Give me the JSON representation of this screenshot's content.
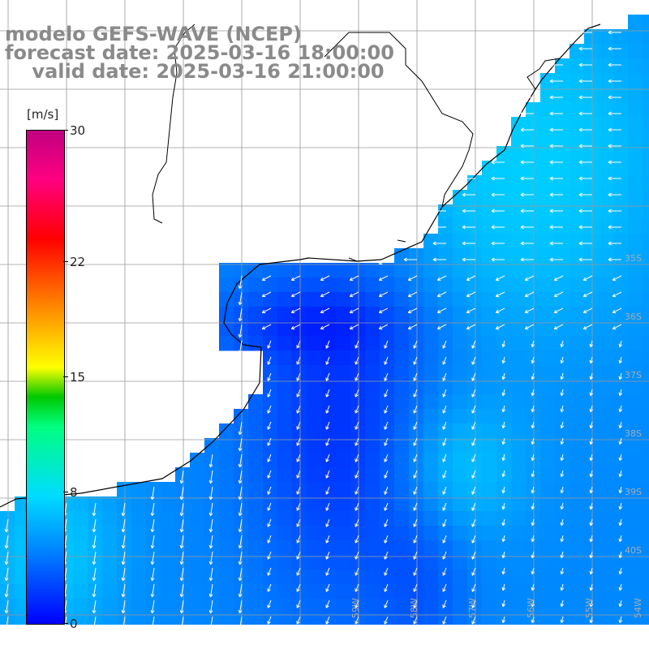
{
  "title": {
    "line1": "modelo GEFS-WAVE (NCEP)",
    "line2": "forecast date: 2025-03-16 18:00:00",
    "line3": "    valid date: 2025-03-16 21:00:00"
  },
  "colorbar": {
    "unit": "[m/s]",
    "ticks": [
      {
        "label": "30",
        "value": 30
      },
      {
        "label": "22",
        "value": 22
      },
      {
        "label": "15",
        "value": 15
      },
      {
        "label": "8",
        "value": 8
      },
      {
        "label": "0",
        "value": 0
      }
    ],
    "range": [
      0,
      30
    ]
  },
  "grid": {
    "lat_labels": [
      "35S",
      "36S",
      "37S",
      "38S",
      "39S",
      "40S"
    ],
    "lon_labels": [
      "59W",
      "58W",
      "57W",
      "56W",
      "55W",
      "54W"
    ],
    "grid_color": "#9a9a9a"
  },
  "colors": {
    "land": "#ffffff",
    "coast": "#000000",
    "arrow": "#ffffff",
    "field_low": "#0000ff",
    "field_mid": "#0096ff",
    "field_high": "#00dcff"
  }
}
